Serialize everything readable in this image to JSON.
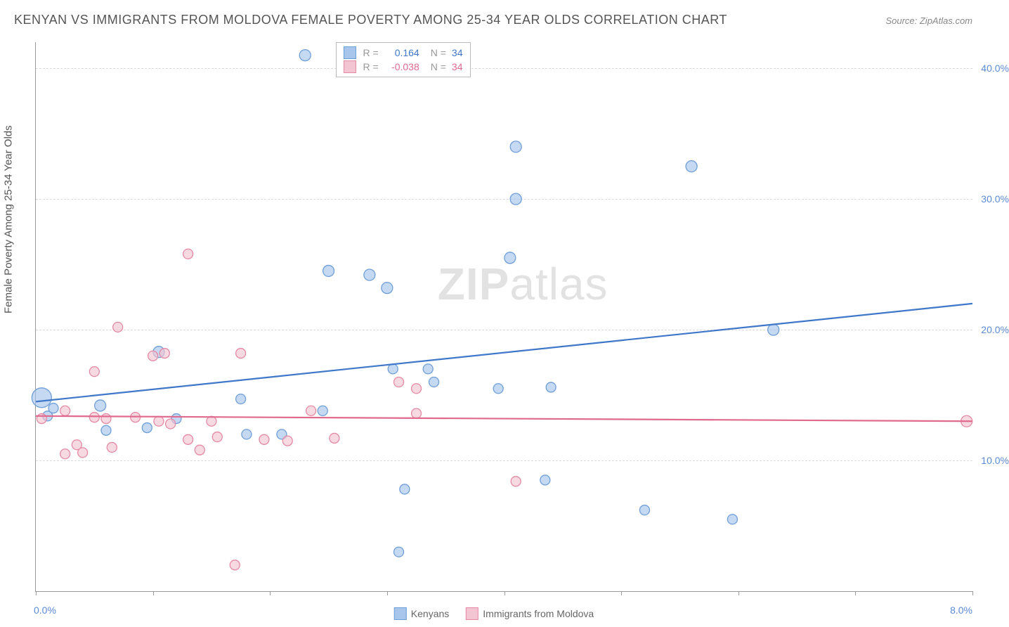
{
  "title": "KENYAN VS IMMIGRANTS FROM MOLDOVA FEMALE POVERTY AMONG 25-34 YEAR OLDS CORRELATION CHART",
  "source": "Source: ZipAtlas.com",
  "ylabel": "Female Poverty Among 25-34 Year Olds",
  "watermark_a": "ZIP",
  "watermark_b": "atlas",
  "chart": {
    "type": "scatter",
    "xlim": [
      0,
      8
    ],
    "ylim": [
      0,
      42
    ],
    "xticks": [
      0,
      1,
      2,
      3,
      4,
      5,
      6,
      7,
      8
    ],
    "xtick_labels": {
      "0": "0.0%",
      "8": "8.0%"
    },
    "yticks": [
      10,
      20,
      30,
      40
    ],
    "ytick_labels": [
      "10.0%",
      "20.0%",
      "30.0%",
      "40.0%"
    ],
    "background_color": "#ffffff",
    "grid_color": "#cccccc"
  },
  "series": [
    {
      "name": "Kenyans",
      "color_fill": "#a8c5ec",
      "color_stroke": "#6f9fd8",
      "line_color": "#3f77c9",
      "r_value": "0.164",
      "n_value": "34",
      "trend": {
        "x1": 0,
        "y1": 14.5,
        "x2": 8,
        "y2": 22.0
      },
      "points": [
        {
          "x": 0.05,
          "y": 14.8,
          "r": 14
        },
        {
          "x": 0.1,
          "y": 13.4,
          "r": 7
        },
        {
          "x": 0.15,
          "y": 14.0,
          "r": 7
        },
        {
          "x": 0.55,
          "y": 14.2,
          "r": 8
        },
        {
          "x": 0.6,
          "y": 12.3,
          "r": 7
        },
        {
          "x": 0.95,
          "y": 12.5,
          "r": 7
        },
        {
          "x": 1.05,
          "y": 18.3,
          "r": 8
        },
        {
          "x": 1.2,
          "y": 13.2,
          "r": 7
        },
        {
          "x": 1.75,
          "y": 14.7,
          "r": 7
        },
        {
          "x": 1.8,
          "y": 12.0,
          "r": 7
        },
        {
          "x": 2.1,
          "y": 12.0,
          "r": 7
        },
        {
          "x": 2.3,
          "y": 41.0,
          "r": 8
        },
        {
          "x": 2.45,
          "y": 13.8,
          "r": 7
        },
        {
          "x": 2.5,
          "y": 24.5,
          "r": 8
        },
        {
          "x": 2.85,
          "y": 24.2,
          "r": 8
        },
        {
          "x": 3.0,
          "y": 23.2,
          "r": 8
        },
        {
          "x": 3.05,
          "y": 17.0,
          "r": 7
        },
        {
          "x": 3.1,
          "y": 3.0,
          "r": 7
        },
        {
          "x": 3.15,
          "y": 7.8,
          "r": 7
        },
        {
          "x": 3.35,
          "y": 17.0,
          "r": 7
        },
        {
          "x": 3.4,
          "y": 16.0,
          "r": 7
        },
        {
          "x": 3.95,
          "y": 15.5,
          "r": 7
        },
        {
          "x": 4.05,
          "y": 25.5,
          "r": 8
        },
        {
          "x": 4.1,
          "y": 34.0,
          "r": 8
        },
        {
          "x": 4.1,
          "y": 30.0,
          "r": 8
        },
        {
          "x": 4.35,
          "y": 8.5,
          "r": 7
        },
        {
          "x": 4.4,
          "y": 15.6,
          "r": 7
        },
        {
          "x": 5.2,
          "y": 6.2,
          "r": 7
        },
        {
          "x": 5.6,
          "y": 32.5,
          "r": 8
        },
        {
          "x": 5.95,
          "y": 5.5,
          "r": 7
        },
        {
          "x": 6.3,
          "y": 20.0,
          "r": 8
        }
      ]
    },
    {
      "name": "Immigrants from Moldova",
      "color_fill": "#f3c4d1",
      "color_stroke": "#e48aa5",
      "line_color": "#e06a8e",
      "r_value": "-0.038",
      "n_value": "34",
      "trend": {
        "x1": 0,
        "y1": 13.4,
        "x2": 8,
        "y2": 13.0
      },
      "points": [
        {
          "x": 0.05,
          "y": 13.2,
          "r": 7
        },
        {
          "x": 0.25,
          "y": 10.5,
          "r": 7
        },
        {
          "x": 0.25,
          "y": 13.8,
          "r": 7
        },
        {
          "x": 0.35,
          "y": 11.2,
          "r": 7
        },
        {
          "x": 0.4,
          "y": 10.6,
          "r": 7
        },
        {
          "x": 0.5,
          "y": 13.3,
          "r": 7
        },
        {
          "x": 0.5,
          "y": 16.8,
          "r": 7
        },
        {
          "x": 0.6,
          "y": 13.2,
          "r": 7
        },
        {
          "x": 0.65,
          "y": 11.0,
          "r": 7
        },
        {
          "x": 0.7,
          "y": 20.2,
          "r": 7
        },
        {
          "x": 0.85,
          "y": 13.3,
          "r": 7
        },
        {
          "x": 1.0,
          "y": 18.0,
          "r": 7
        },
        {
          "x": 1.05,
          "y": 13.0,
          "r": 7
        },
        {
          "x": 1.1,
          "y": 18.2,
          "r": 7
        },
        {
          "x": 1.15,
          "y": 12.8,
          "r": 7
        },
        {
          "x": 1.3,
          "y": 11.6,
          "r": 7
        },
        {
          "x": 1.3,
          "y": 25.8,
          "r": 7
        },
        {
          "x": 1.4,
          "y": 10.8,
          "r": 7
        },
        {
          "x": 1.5,
          "y": 13.0,
          "r": 7
        },
        {
          "x": 1.55,
          "y": 11.8,
          "r": 7
        },
        {
          "x": 1.7,
          "y": 2.0,
          "r": 7
        },
        {
          "x": 1.75,
          "y": 18.2,
          "r": 7
        },
        {
          "x": 1.95,
          "y": 11.6,
          "r": 7
        },
        {
          "x": 2.15,
          "y": 11.5,
          "r": 7
        },
        {
          "x": 2.35,
          "y": 13.8,
          "r": 7
        },
        {
          "x": 2.55,
          "y": 11.7,
          "r": 7
        },
        {
          "x": 3.1,
          "y": 16.0,
          "r": 7
        },
        {
          "x": 3.25,
          "y": 13.6,
          "r": 7
        },
        {
          "x": 3.25,
          "y": 15.5,
          "r": 7
        },
        {
          "x": 4.1,
          "y": 8.4,
          "r": 7
        },
        {
          "x": 7.95,
          "y": 13.0,
          "r": 8
        }
      ]
    }
  ],
  "stats_labels": {
    "r": "R =",
    "n": "N ="
  },
  "legend": {
    "items": [
      {
        "label": "Kenyans",
        "fill": "#a8c5ec",
        "stroke": "#6f9fd8"
      },
      {
        "label": "Immigrants from Moldova",
        "fill": "#f3c4d1",
        "stroke": "#e48aa5"
      }
    ]
  }
}
